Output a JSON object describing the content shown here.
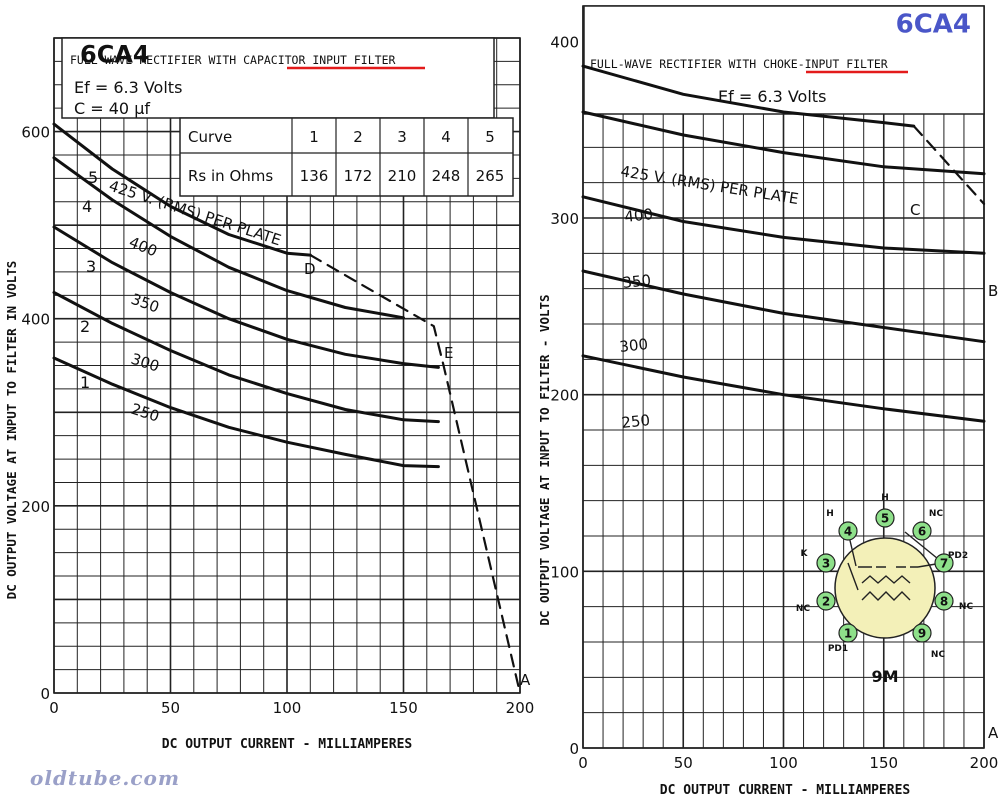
{
  "watermark": "oldtube.com",
  "left": {
    "tube_label": "6CA4",
    "title_pre": "FULL WAVE RECTIFIER WITH ",
    "title_em": "CAPACITOR INPUT",
    "title_post": " FILTER",
    "ef": "Ef = 6.3 Volts",
    "c": "C  =  40 μf",
    "table": {
      "header_label": "Curve",
      "curves": [
        "1",
        "2",
        "3",
        "4",
        "5"
      ],
      "row_label": "Rs in Ohms",
      "rs": [
        "136",
        "172",
        "210",
        "248",
        "265"
      ]
    },
    "ylabel": "DC OUTPUT VOLTAGE AT INPUT TO FILTER IN VOLTS",
    "xlabel": "DC OUTPUT CURRENT - MILLIAMPERES"
  },
  "right": {
    "tube_label": "6CA4",
    "title_pre": "FULL-WAVE RECTIFIER WITH ",
    "title_em": "CHOKE-INPUT",
    "title_post": " FILTER",
    "ef": "Ef = 6.3 Volts",
    "ylabel": "DC OUTPUT VOLTAGE AT INPUT TO FILTER - VOLTS",
    "xlabel": "DC OUTPUT CURRENT - MILLIAMPERES"
  },
  "basing": {
    "label": "9M",
    "pins": [
      {
        "n": "1",
        "name": "PD1"
      },
      {
        "n": "2",
        "name": "NC"
      },
      {
        "n": "3",
        "name": "K"
      },
      {
        "n": "4",
        "name": "H"
      },
      {
        "n": "5",
        "name": "H"
      },
      {
        "n": "6",
        "name": "NC"
      },
      {
        "n": "7",
        "name": "PD2"
      },
      {
        "n": "8",
        "name": "NC"
      },
      {
        "n": "9",
        "name": "NC"
      }
    ],
    "pin_fill": "#8ee08a",
    "envelope_fill": "#f3f0b8"
  },
  "chart_data": [
    {
      "type": "line",
      "title": "FULL WAVE RECTIFIER WITH CAPACITOR INPUT FILTER",
      "xlabel": "DC OUTPUT CURRENT - MILLIAMPERES",
      "ylabel": "DC OUTPUT VOLTAGE AT INPUT TO FILTER IN VOLTS",
      "xlim": [
        0,
        200
      ],
      "ylim": [
        0,
        700
      ],
      "xticks": [
        "0",
        "50",
        "100",
        "150",
        "200"
      ],
      "yticks": [
        "0",
        "200",
        "400",
        "600"
      ],
      "grid": true,
      "series": [
        {
          "name": "1",
          "label": "250",
          "x": [
            0,
            25,
            50,
            75,
            100,
            125,
            150,
            165
          ],
          "y": [
            358,
            330,
            305,
            284,
            268,
            255,
            243,
            242
          ]
        },
        {
          "name": "2",
          "label": "300",
          "x": [
            0,
            25,
            50,
            75,
            100,
            125,
            150,
            165
          ],
          "y": [
            428,
            395,
            366,
            340,
            320,
            303,
            292,
            290
          ]
        },
        {
          "name": "3",
          "label": "350",
          "x": [
            0,
            25,
            50,
            75,
            100,
            125,
            150,
            165
          ],
          "y": [
            498,
            460,
            428,
            400,
            378,
            362,
            352,
            348
          ]
        },
        {
          "name": "4",
          "label": "400",
          "x": [
            0,
            25,
            50,
            75,
            100,
            125,
            150
          ],
          "y": [
            572,
            527,
            488,
            455,
            430,
            412,
            401
          ]
        },
        {
          "name": "5",
          "label": "425 V. (RMS) PER PLATE",
          "x": [
            0,
            25,
            50,
            75,
            100,
            110
          ],
          "y": [
            608,
            560,
            520,
            490,
            470,
            468
          ]
        },
        {
          "name": "limit",
          "style": "dashed",
          "x": [
            110,
            163,
            167,
            200
          ],
          "y": [
            468,
            392,
            352,
            0
          ]
        }
      ],
      "annotations": [
        "D",
        "E",
        "A"
      ]
    },
    {
      "type": "line",
      "title": "FULL-WAVE RECTIFIER WITH CHOKE-INPUT FILTER",
      "xlabel": "DC OUTPUT CURRENT - MILLIAMPERES",
      "ylabel": "DC OUTPUT VOLTAGE AT INPUT TO FILTER - VOLTS",
      "xlim": [
        0,
        200
      ],
      "ylim": [
        0,
        420
      ],
      "xticks": [
        "0",
        "50",
        "100",
        "150",
        "200"
      ],
      "yticks": [
        "0",
        "100",
        "200",
        "300",
        "400"
      ],
      "grid": true,
      "series": [
        {
          "name": "250",
          "label": "250",
          "x": [
            0,
            50,
            100,
            150,
            200
          ],
          "y": [
            222,
            210,
            200,
            192,
            185
          ]
        },
        {
          "name": "300",
          "label": "300",
          "x": [
            0,
            50,
            100,
            150,
            200
          ],
          "y": [
            270,
            257,
            246,
            238,
            230
          ]
        },
        {
          "name": "350",
          "label": "350",
          "x": [
            0,
            50,
            100,
            150,
            200
          ],
          "y": [
            312,
            298,
            289,
            283,
            280
          ]
        },
        {
          "name": "400",
          "label": "400",
          "x": [
            0,
            50,
            100,
            150,
            200
          ],
          "y": [
            360,
            347,
            337,
            329,
            325
          ]
        },
        {
          "name": "425",
          "label": "425 V. (RMS) PER PLATE",
          "x": [
            0,
            50,
            100,
            150,
            165
          ],
          "y": [
            386,
            370,
            360,
            354,
            352
          ]
        },
        {
          "name": "limit",
          "style": "dashed",
          "x": [
            165,
            200
          ],
          "y": [
            352,
            308
          ]
        }
      ],
      "annotations": [
        "C",
        "B",
        "A"
      ]
    }
  ]
}
